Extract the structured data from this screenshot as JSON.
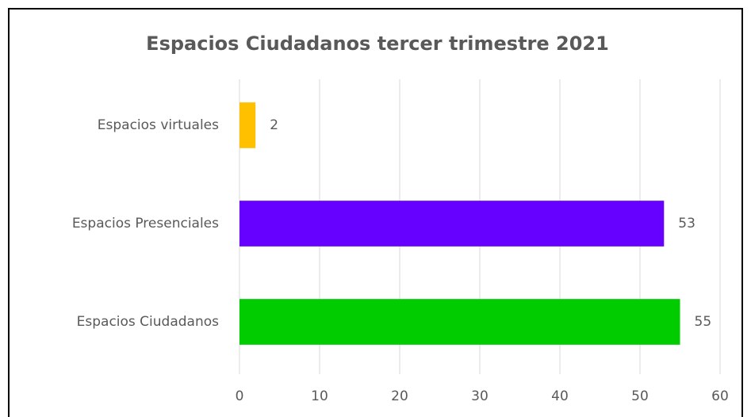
{
  "chart_data": {
    "type": "bar",
    "orientation": "horizontal",
    "title": "Espacios  Ciudadanos  tercer trimestre 2021",
    "categories": [
      "Espacios virtuales",
      "Espacios Presenciales",
      "Espacios Ciudadanos"
    ],
    "values": [
      2,
      53,
      55
    ],
    "colors": [
      "#ffc000",
      "#6600ff",
      "#00cc00"
    ],
    "xlim": [
      0,
      60
    ],
    "xticks": [
      0,
      10,
      20,
      30,
      40,
      50,
      60
    ],
    "grid": true
  }
}
